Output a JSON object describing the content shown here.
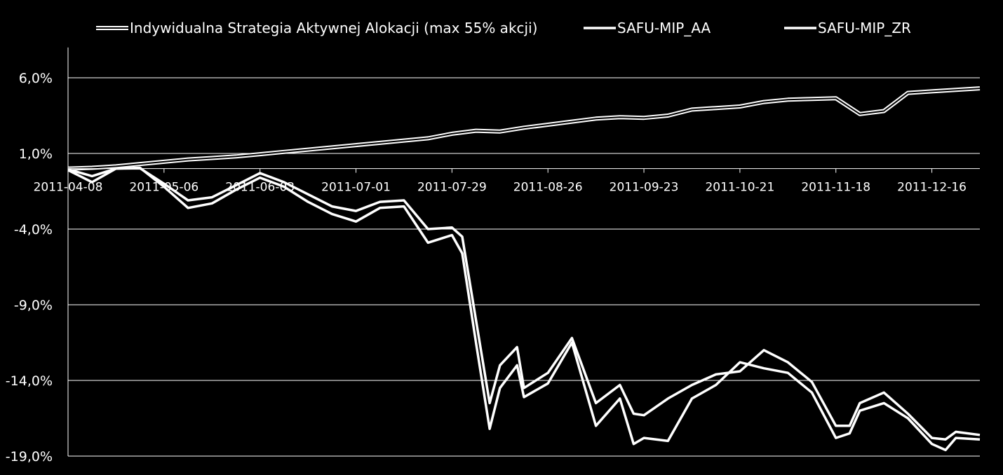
{
  "chart_data": {
    "type": "line",
    "title": "",
    "xlabel": "",
    "ylabel": "",
    "legend_position": "top",
    "grid": true,
    "ylim": [
      -19,
      8
    ],
    "y_ticks": [
      6,
      1,
      -4,
      -9,
      -14,
      -19
    ],
    "y_tick_labels": [
      "6,0%",
      "1,0%",
      "-4,0%",
      "-9,0%",
      "-14,0%",
      "-19,0%"
    ],
    "x_range": [
      "2011-04-08",
      "2011-12-30"
    ],
    "x_axis_crossing": 0,
    "x_ticks": [
      "2011-04-08",
      "2011-05-06",
      "2011-06-03",
      "2011-07-01",
      "2011-07-29",
      "2011-08-26",
      "2011-09-23",
      "2011-10-21",
      "2011-11-18",
      "2011-12-16"
    ],
    "series": [
      {
        "name": "Indywidualna Strategia Aktywnej Alokacji (max 55% akcji)",
        "style": "double",
        "color": "#ffffff",
        "points": [
          [
            "2011-04-08",
            0.0
          ],
          [
            "2011-04-15",
            0.05
          ],
          [
            "2011-04-22",
            0.15
          ],
          [
            "2011-04-29",
            0.3
          ],
          [
            "2011-05-06",
            0.45
          ],
          [
            "2011-05-13",
            0.6
          ],
          [
            "2011-05-20",
            0.7
          ],
          [
            "2011-05-27",
            0.8
          ],
          [
            "2011-06-03",
            0.95
          ],
          [
            "2011-06-10",
            1.1
          ],
          [
            "2011-06-17",
            1.25
          ],
          [
            "2011-06-24",
            1.4
          ],
          [
            "2011-07-01",
            1.55
          ],
          [
            "2011-07-08",
            1.7
          ],
          [
            "2011-07-15",
            1.85
          ],
          [
            "2011-07-22",
            2.0
          ],
          [
            "2011-07-29",
            2.3
          ],
          [
            "2011-08-05",
            2.5
          ],
          [
            "2011-08-12",
            2.45
          ],
          [
            "2011-08-19",
            2.7
          ],
          [
            "2011-08-26",
            2.9
          ],
          [
            "2011-09-02",
            3.1
          ],
          [
            "2011-09-09",
            3.3
          ],
          [
            "2011-09-16",
            3.4
          ],
          [
            "2011-09-23",
            3.35
          ],
          [
            "2011-09-30",
            3.5
          ],
          [
            "2011-10-07",
            3.9
          ],
          [
            "2011-10-14",
            4.0
          ],
          [
            "2011-10-21",
            4.1
          ],
          [
            "2011-10-28",
            4.4
          ],
          [
            "2011-11-04",
            4.55
          ],
          [
            "2011-11-11",
            4.6
          ],
          [
            "2011-11-18",
            4.65
          ],
          [
            "2011-11-25",
            3.6
          ],
          [
            "2011-12-02",
            3.8
          ],
          [
            "2011-12-09",
            5.0
          ],
          [
            "2011-12-16",
            5.1
          ],
          [
            "2011-12-23",
            5.2
          ],
          [
            "2011-12-30",
            5.3
          ]
        ]
      },
      {
        "name": "SAFU-MIP_AA",
        "style": "single",
        "color": "#ffffff",
        "points": [
          [
            "2011-04-08",
            -0.1
          ],
          [
            "2011-04-15",
            -0.9
          ],
          [
            "2011-04-22",
            0.0
          ],
          [
            "2011-04-29",
            0.05
          ],
          [
            "2011-05-06",
            -1.2
          ],
          [
            "2011-05-13",
            -2.6
          ],
          [
            "2011-05-20",
            -2.3
          ],
          [
            "2011-05-27",
            -1.4
          ],
          [
            "2011-06-03",
            -0.6
          ],
          [
            "2011-06-10",
            -1.2
          ],
          [
            "2011-06-17",
            -2.2
          ],
          [
            "2011-06-24",
            -3.0
          ],
          [
            "2011-07-01",
            -3.5
          ],
          [
            "2011-07-08",
            -2.6
          ],
          [
            "2011-07-15",
            -2.5
          ],
          [
            "2011-07-22",
            -4.9
          ],
          [
            "2011-07-29",
            -4.4
          ],
          [
            "2011-08-01",
            -5.6
          ],
          [
            "2011-08-05",
            -11.5
          ],
          [
            "2011-08-09",
            -17.2
          ],
          [
            "2011-08-12",
            -14.5
          ],
          [
            "2011-08-17",
            -13.0
          ],
          [
            "2011-08-19",
            -15.1
          ],
          [
            "2011-08-26",
            -14.2
          ],
          [
            "2011-09-02",
            -11.5
          ],
          [
            "2011-09-09",
            -17.0
          ],
          [
            "2011-09-16",
            -15.2
          ],
          [
            "2011-09-20",
            -18.2
          ],
          [
            "2011-09-23",
            -17.8
          ],
          [
            "2011-09-30",
            -18.0
          ],
          [
            "2011-10-07",
            -15.2
          ],
          [
            "2011-10-14",
            -14.3
          ],
          [
            "2011-10-21",
            -12.8
          ],
          [
            "2011-10-28",
            -13.2
          ],
          [
            "2011-11-04",
            -13.5
          ],
          [
            "2011-11-11",
            -14.8
          ],
          [
            "2011-11-18",
            -17.8
          ],
          [
            "2011-11-22",
            -17.5
          ],
          [
            "2011-11-25",
            -16.0
          ],
          [
            "2011-12-02",
            -15.5
          ],
          [
            "2011-12-09",
            -16.5
          ],
          [
            "2011-12-16",
            -18.2
          ],
          [
            "2011-12-20",
            -18.6
          ],
          [
            "2011-12-23",
            -17.8
          ],
          [
            "2011-12-30",
            -17.9
          ]
        ]
      },
      {
        "name": "SAFU-MIP_ZR",
        "style": "single",
        "color": "#ffffff",
        "points": [
          [
            "2011-04-08",
            -0.05
          ],
          [
            "2011-04-15",
            -0.5
          ],
          [
            "2011-04-22",
            0.0
          ],
          [
            "2011-04-29",
            0.02
          ],
          [
            "2011-05-06",
            -1.0
          ],
          [
            "2011-05-13",
            -2.1
          ],
          [
            "2011-05-20",
            -1.9
          ],
          [
            "2011-05-27",
            -1.1
          ],
          [
            "2011-06-03",
            -0.3
          ],
          [
            "2011-06-10",
            -0.9
          ],
          [
            "2011-06-17",
            -1.7
          ],
          [
            "2011-06-24",
            -2.5
          ],
          [
            "2011-07-01",
            -2.8
          ],
          [
            "2011-07-08",
            -2.2
          ],
          [
            "2011-07-15",
            -2.1
          ],
          [
            "2011-07-22",
            -4.0
          ],
          [
            "2011-07-29",
            -3.9
          ],
          [
            "2011-08-01",
            -4.5
          ],
          [
            "2011-08-05",
            -10.0
          ],
          [
            "2011-08-09",
            -15.5
          ],
          [
            "2011-08-12",
            -13.0
          ],
          [
            "2011-08-17",
            -11.8
          ],
          [
            "2011-08-19",
            -14.5
          ],
          [
            "2011-08-26",
            -13.5
          ],
          [
            "2011-09-02",
            -11.2
          ],
          [
            "2011-09-09",
            -15.5
          ],
          [
            "2011-09-16",
            -14.3
          ],
          [
            "2011-09-20",
            -16.2
          ],
          [
            "2011-09-23",
            -16.3
          ],
          [
            "2011-09-30",
            -15.2
          ],
          [
            "2011-10-07",
            -14.3
          ],
          [
            "2011-10-14",
            -13.6
          ],
          [
            "2011-10-21",
            -13.4
          ],
          [
            "2011-10-28",
            -12.0
          ],
          [
            "2011-11-04",
            -12.8
          ],
          [
            "2011-11-11",
            -14.1
          ],
          [
            "2011-11-18",
            -17.0
          ],
          [
            "2011-11-22",
            -17.0
          ],
          [
            "2011-11-25",
            -15.5
          ],
          [
            "2011-12-02",
            -14.8
          ],
          [
            "2011-12-09",
            -16.2
          ],
          [
            "2011-12-16",
            -17.8
          ],
          [
            "2011-12-20",
            -17.9
          ],
          [
            "2011-12-23",
            -17.4
          ],
          [
            "2011-12-30",
            -17.6
          ]
        ]
      }
    ]
  }
}
